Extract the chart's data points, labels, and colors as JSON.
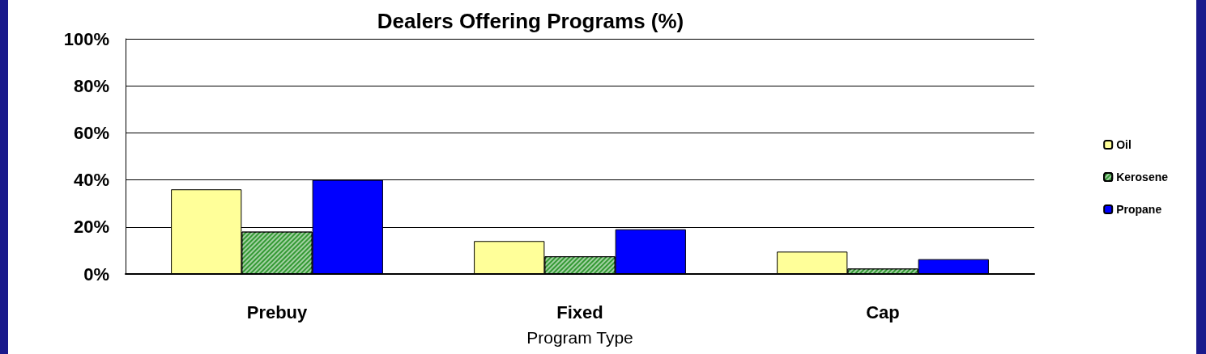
{
  "chart_data": {
    "type": "bar",
    "title": "Dealers Offering Programs (%)",
    "xlabel": "Program Type",
    "categories": [
      "Prebuy",
      "Fixed",
      "Cap"
    ],
    "series": [
      {
        "name": "Oil",
        "color": "#ffff99",
        "values": [
          36,
          14,
          9.5
        ]
      },
      {
        "name": "Kerosene",
        "color": "#339933",
        "values": [
          18,
          7.5,
          2.3
        ]
      },
      {
        "name": "Propane",
        "color": "#0000ff",
        "values": [
          40,
          19,
          6.3
        ]
      }
    ],
    "ylim": [
      0,
      100
    ],
    "yticks": [
      {
        "value": 0,
        "label": "0%"
      },
      {
        "value": 20,
        "label": "20%"
      },
      {
        "value": 40,
        "label": "40%"
      },
      {
        "value": 60,
        "label": "60%"
      },
      {
        "value": 80,
        "label": "80%"
      },
      {
        "value": 100,
        "label": "100%"
      }
    ],
    "grid": "y",
    "legend": "right"
  }
}
